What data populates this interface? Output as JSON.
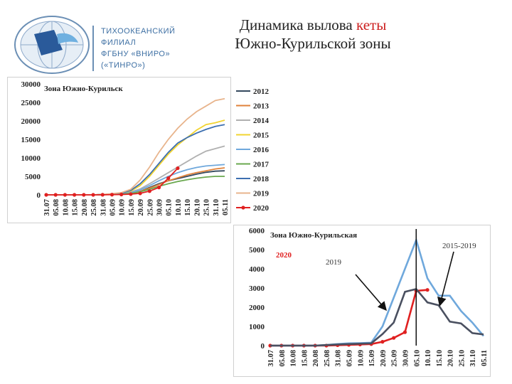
{
  "header": {
    "title_part1": "Динамика вылова ",
    "title_accent": "кеты",
    "title_line2": "Южно-Курильской зоны",
    "accent_color": "#cc1f1f"
  },
  "organization": {
    "lines": [
      "ТИХООКЕАНСКИЙ",
      "ФИЛИАЛ",
      "ФГБНУ «ВНИРО»",
      "(«ТИНРО»)"
    ],
    "logo_icon": "globe-fish-logo-icon"
  },
  "chart_data": [
    {
      "type": "line",
      "title": "Зона Южно-Курильск",
      "ylim": [
        0,
        30000
      ],
      "yticks": [
        0,
        5000,
        10000,
        15000,
        20000,
        25000,
        30000
      ],
      "ytick_labels": [
        "0",
        "5000",
        "10000",
        "15000",
        "20000",
        "25000",
        "30000"
      ],
      "categories": [
        "31.07",
        "05.08",
        "10.08",
        "15.08",
        "20.08",
        "25.08",
        "31.08",
        "05.09",
        "10.09",
        "15.09",
        "20.09",
        "25.09",
        "30.09",
        "05.10",
        "10.10",
        "15.10",
        "20.10",
        "25.10",
        "31.10",
        "05.11"
      ],
      "legend_position": "right",
      "series": [
        {
          "name": "2012",
          "color": "#34495e",
          "values": [
            0,
            0,
            0,
            0,
            0,
            0,
            50,
            100,
            200,
            400,
            900,
            2000,
            3000,
            3800,
            4400,
            5000,
            5600,
            6100,
            6400,
            6500
          ]
        },
        {
          "name": "2013",
          "color": "#e0823a",
          "values": [
            0,
            0,
            0,
            0,
            0,
            0,
            50,
            100,
            200,
            400,
            900,
            1800,
            2800,
            3800,
            4600,
            5400,
            6000,
            6500,
            7000,
            7300
          ]
        },
        {
          "name": "2014",
          "color": "#b0b0b0",
          "values": [
            0,
            0,
            0,
            0,
            0,
            0,
            100,
            200,
            400,
            800,
            1600,
            3000,
            4500,
            6000,
            7500,
            9000,
            10500,
            11800,
            12500,
            13200
          ]
        },
        {
          "name": "2015",
          "color": "#f2d431",
          "values": [
            0,
            0,
            0,
            0,
            0,
            0,
            100,
            200,
            500,
            1000,
            2500,
            5000,
            8000,
            11000,
            13500,
            15500,
            17500,
            19000,
            19500,
            20200
          ]
        },
        {
          "name": "2016",
          "color": "#6fa8dc",
          "values": [
            0,
            0,
            0,
            0,
            0,
            0,
            50,
            150,
            300,
            600,
            1300,
            2500,
            3800,
            5000,
            6000,
            6800,
            7400,
            7800,
            8000,
            8200
          ]
        },
        {
          "name": "2017",
          "color": "#6aa84f",
          "values": [
            0,
            0,
            0,
            0,
            0,
            0,
            50,
            100,
            200,
            400,
            800,
            1500,
            2300,
            3000,
            3600,
            4100,
            4500,
            4800,
            5000,
            5000
          ]
        },
        {
          "name": "2018",
          "color": "#3d6fb0",
          "values": [
            0,
            0,
            0,
            0,
            0,
            0,
            100,
            200,
            500,
            1200,
            3000,
            5500,
            8500,
            11500,
            14000,
            15500,
            16700,
            17700,
            18500,
            19000
          ]
        },
        {
          "name": "2019",
          "color": "#e8b48c",
          "values": [
            0,
            0,
            0,
            0,
            0,
            0,
            100,
            300,
            600,
            1500,
            4000,
            7500,
            11500,
            15000,
            18000,
            20500,
            22500,
            24000,
            25500,
            26000
          ]
        },
        {
          "name": "2020",
          "color": "#e02020",
          "marker": true,
          "values": [
            0,
            0,
            0,
            0,
            0,
            0,
            20,
            50,
            100,
            200,
            400,
            1000,
            2000,
            4500,
            7200,
            null,
            null,
            null,
            null,
            null
          ]
        }
      ]
    },
    {
      "type": "line",
      "title": "Зона Южно-Курильская",
      "ylim": [
        0,
        6000
      ],
      "yticks": [
        0,
        1000,
        2000,
        3000,
        4000,
        5000,
        6000
      ],
      "ytick_labels": [
        "0",
        "1000",
        "2000",
        "3000",
        "4000",
        "5000",
        "6000"
      ],
      "categories": [
        "31.07",
        "05.08",
        "10.08",
        "15.08",
        "20.08",
        "25.08",
        "31.08",
        "05.09",
        "10.09",
        "15.09",
        "20.09",
        "25.09",
        "30.09",
        "05.10",
        "10.10",
        "15.10",
        "20.10",
        "25.10",
        "31.10",
        "05.11"
      ],
      "annotations": [
        "2020",
        "2019",
        "2015-2019"
      ],
      "annotation_colors": [
        "#e02020",
        "#333333",
        "#333333"
      ],
      "series": [
        {
          "color": "#e02020",
          "marker": true,
          "values": [
            0,
            0,
            0,
            0,
            0,
            0,
            20,
            40,
            60,
            80,
            200,
            400,
            700,
            2850,
            2900,
            null,
            null,
            null,
            null,
            null
          ]
        },
        {
          "color": "#6fa8dc",
          "values": [
            0,
            0,
            0,
            0,
            0,
            30,
            80,
            120,
            130,
            150,
            1000,
            2500,
            4000,
            5500,
            3500,
            2600,
            2600,
            1800,
            1200,
            500
          ]
        },
        {
          "color": "#4a5060",
          "values": [
            0,
            0,
            0,
            0,
            0,
            30,
            60,
            80,
            100,
            120,
            600,
            1200,
            2800,
            2950,
            2250,
            2100,
            1250,
            1150,
            650,
            580
          ]
        }
      ]
    }
  ]
}
